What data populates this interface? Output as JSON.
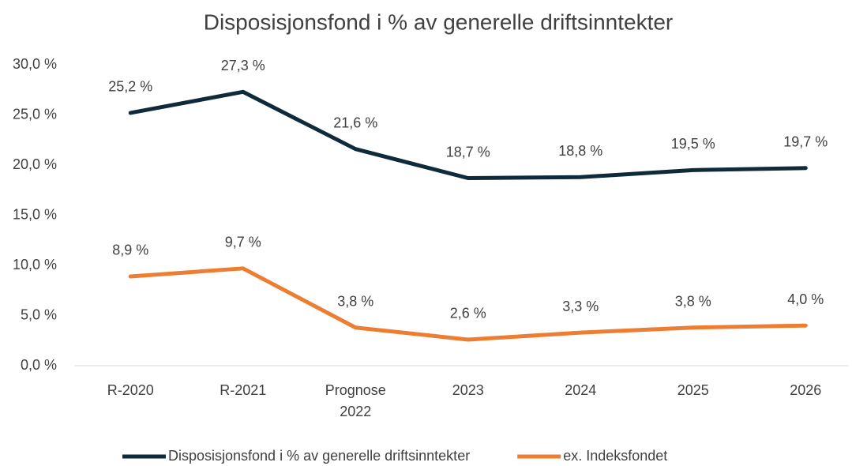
{
  "chart_data": {
    "type": "line",
    "title": "Disposisjonsfond i % av generelle driftsinntekter",
    "categories": [
      "R-2020",
      "R-2021",
      "Prognose 2022",
      "2023",
      "2024",
      "2025",
      "2026"
    ],
    "series": [
      {
        "name": "Disposisjonsfond i % av generelle driftsinntekter",
        "color": "#0e2a3b",
        "values": [
          25.2,
          27.3,
          21.6,
          18.7,
          18.8,
          19.5,
          19.7
        ],
        "value_labels": [
          "25,2 %",
          "27,3 %",
          "21,6 %",
          "18,7 %",
          "18,8 %",
          "19,5 %",
          "19,7 %"
        ]
      },
      {
        "name": "ex. Indeksfondet",
        "color": "#ed7d31",
        "values": [
          8.9,
          9.7,
          3.8,
          2.6,
          3.3,
          3.8,
          4.0
        ],
        "value_labels": [
          "8,9 %",
          "9,7 %",
          "3,8 %",
          "2,6 %",
          "3,3 %",
          "3,8 %",
          "4,0 %"
        ]
      }
    ],
    "ylim": [
      0,
      30
    ],
    "yticks": [
      {
        "value": 0,
        "label": "0,0 %"
      },
      {
        "value": 5,
        "label": "5,0 %"
      },
      {
        "value": 10,
        "label": "10,0 %"
      },
      {
        "value": 15,
        "label": "15,0 %"
      },
      {
        "value": 20,
        "label": "20,0 %"
      },
      {
        "value": 25,
        "label": "25,0 %"
      },
      {
        "value": 30,
        "label": "30,0 %"
      }
    ],
    "grid": false,
    "legend": "bottom"
  }
}
